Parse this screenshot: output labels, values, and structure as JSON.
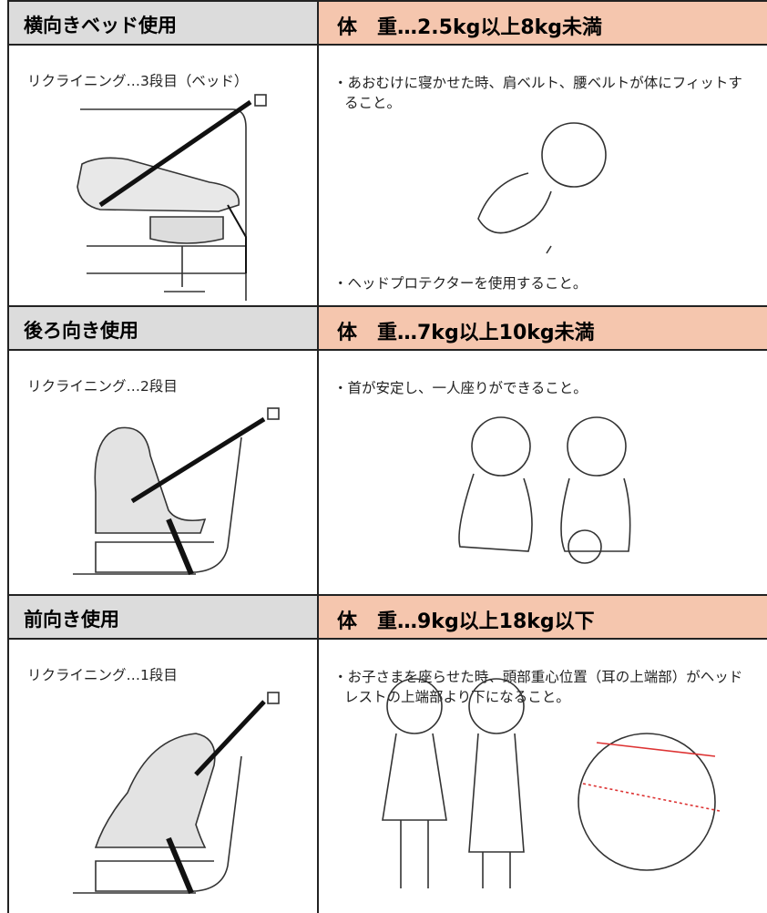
{
  "sections": [
    {
      "mode": "横向きベッド使用",
      "weight": "体　重…2.5kg以上8kg未満",
      "recline": "リクライニング…3段目（ベッド）",
      "conditions": [
        "・あおむけに寝かせた時、肩ベルト、腰ベルトが体にフィットすること。",
        "・ヘッドプロテクターを使用すること。"
      ]
    },
    {
      "mode": "後ろ向き使用",
      "weight": "体　重…7kg以上10kg未満",
      "recline": "リクライニング…2段目",
      "conditions": [
        "・首が安定し、一人座りができること。"
      ]
    },
    {
      "mode": "前向き使用",
      "weight": "体　重…9kg以上18kg以下",
      "recline": "リクライニング…1段目",
      "conditions": [
        "・お子さまを座らせた時、頭部重心位置（耳の上端部）がヘッドレストの上端部より下になること。"
      ]
    }
  ]
}
